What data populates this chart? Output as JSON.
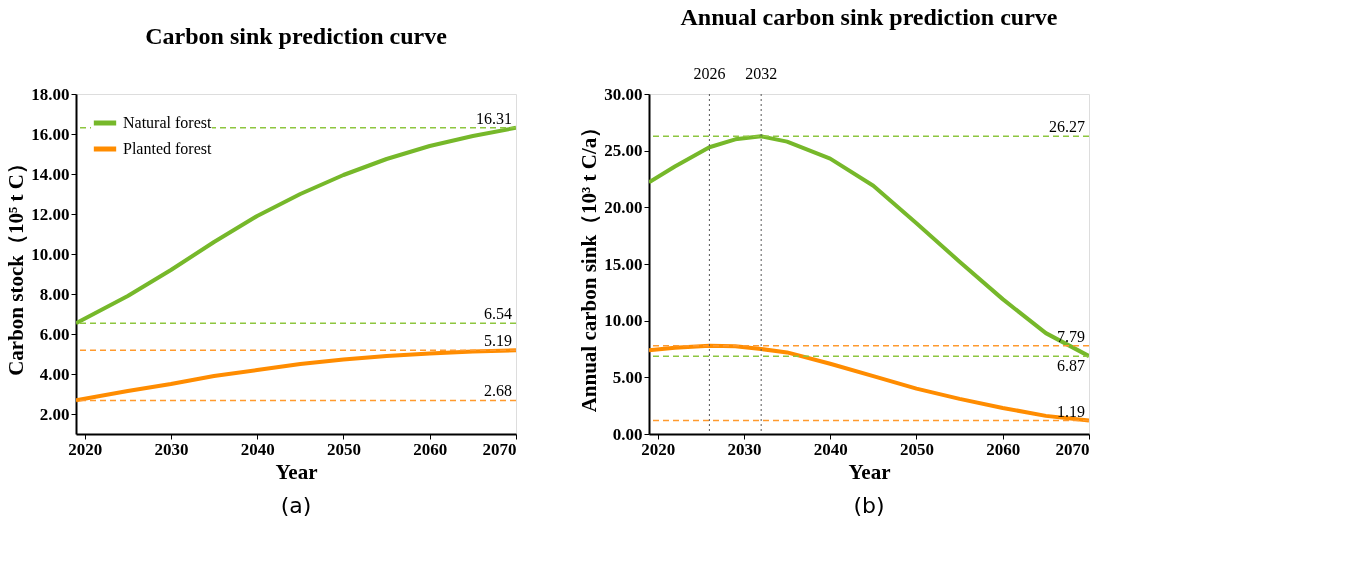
{
  "chart_data": [
    {
      "type": "line",
      "title": "Carbon sink prediction curve",
      "xlabel": "Year",
      "ylabel": "Carbon stock（10⁵ t C）",
      "xlim": [
        2019,
        2070
      ],
      "xticks": [
        2020,
        2030,
        2040,
        2050,
        2060,
        2070
      ],
      "ylim": [
        1,
        18
      ],
      "yticks": [
        {
          "value": 2,
          "label": "2.00"
        },
        {
          "value": 4,
          "label": "4.00"
        },
        {
          "value": 6,
          "label": "6.00"
        },
        {
          "value": 8,
          "label": "8.00"
        },
        {
          "value": 10,
          "label": "10.00"
        },
        {
          "value": 12,
          "label": "12.00"
        },
        {
          "value": 14,
          "label": "14.00"
        },
        {
          "value": 16,
          "label": "16.00"
        },
        {
          "value": 18,
          "label": "18.00"
        }
      ],
      "grid": false,
      "legend": "top left",
      "marker": "none",
      "line_style": "solid",
      "series": [
        {
          "name": "Natural forest",
          "color": "#76b82a",
          "x": [
            2019,
            2025,
            2030,
            2035,
            2040,
            2045,
            2050,
            2055,
            2060,
            2065,
            2070
          ],
          "values": [
            6.54,
            7.9,
            9.2,
            10.6,
            11.9,
            13.0,
            13.95,
            14.75,
            15.4,
            15.9,
            16.31
          ]
        },
        {
          "name": "Planted forest",
          "color": "#ff8c00",
          "x": [
            2019,
            2025,
            2030,
            2035,
            2040,
            2045,
            2050,
            2055,
            2060,
            2065,
            2070
          ],
          "values": [
            2.68,
            3.15,
            3.5,
            3.9,
            4.2,
            4.5,
            4.72,
            4.9,
            5.03,
            5.12,
            5.19
          ]
        }
      ],
      "ref_lines": [
        {
          "axis": "y",
          "value": 16.31,
          "label": "16.31",
          "color": "#8dc63f",
          "line_style": "dashed"
        },
        {
          "axis": "y",
          "value": 6.54,
          "label": "6.54",
          "color": "#8dc63f",
          "line_style": "dashed"
        },
        {
          "axis": "y",
          "value": 5.19,
          "label": "5.19",
          "color": "#ff9a2e",
          "line_style": "dashed"
        },
        {
          "axis": "y",
          "value": 2.68,
          "label": "2.68",
          "color": "#ff9a2e",
          "line_style": "dashed"
        }
      ],
      "annotations": [
        "(a)"
      ]
    },
    {
      "type": "line",
      "title": "Annual carbon sink prediction curve",
      "xlabel": "Year",
      "ylabel": "Annual carbon sink（10³ t C/a）",
      "xlim": [
        2019,
        2070
      ],
      "xticks": [
        2020,
        2030,
        2040,
        2050,
        2060,
        2070
      ],
      "ylim": [
        0,
        30
      ],
      "yticks": [
        {
          "value": 0,
          "label": "0.00"
        },
        {
          "value": 5,
          "label": "5.00"
        },
        {
          "value": 10,
          "label": "10.00"
        },
        {
          "value": 15,
          "label": "15.00"
        },
        {
          "value": 20,
          "label": "20.00"
        },
        {
          "value": 25,
          "label": "25.00"
        },
        {
          "value": 30,
          "label": "30.00"
        }
      ],
      "grid": false,
      "marker": "none",
      "line_style": "solid",
      "series": [
        {
          "color": "#76b82a",
          "x": [
            2019,
            2022,
            2026,
            2029,
            2032,
            2035,
            2040,
            2045,
            2050,
            2055,
            2060,
            2065,
            2070
          ],
          "values": [
            22.2,
            23.6,
            25.3,
            26.0,
            26.27,
            25.8,
            24.3,
            21.9,
            18.6,
            15.2,
            11.9,
            8.9,
            6.87
          ]
        },
        {
          "color": "#ff8c00",
          "x": [
            2019,
            2022,
            2026,
            2029,
            2032,
            2035,
            2040,
            2045,
            2050,
            2055,
            2060,
            2065,
            2070
          ],
          "values": [
            7.4,
            7.6,
            7.79,
            7.75,
            7.5,
            7.2,
            6.2,
            5.1,
            4.0,
            3.1,
            2.3,
            1.6,
            1.19
          ]
        }
      ],
      "ref_lines": [
        {
          "axis": "y",
          "value": 26.27,
          "label": "26.27",
          "color": "#8dc63f",
          "line_style": "dashed"
        },
        {
          "axis": "y",
          "value": 7.79,
          "label": "7.79",
          "color": "#ff9a2e",
          "line_style": "dashed"
        },
        {
          "axis": "y",
          "value": 6.87,
          "label": "6.87",
          "color": "#8dc63f",
          "line_style": "dashed"
        },
        {
          "axis": "y",
          "value": 1.19,
          "label": "1.19",
          "color": "#ff9a2e",
          "line_style": "dashed"
        },
        {
          "axis": "x",
          "value": 2026,
          "label": "2026",
          "color": "#555555",
          "line_style": "dotted"
        },
        {
          "axis": "x",
          "value": 2032,
          "label": "2032",
          "color": "#555555",
          "line_style": "dotted"
        }
      ],
      "annotations": [
        "(b)"
      ]
    }
  ]
}
